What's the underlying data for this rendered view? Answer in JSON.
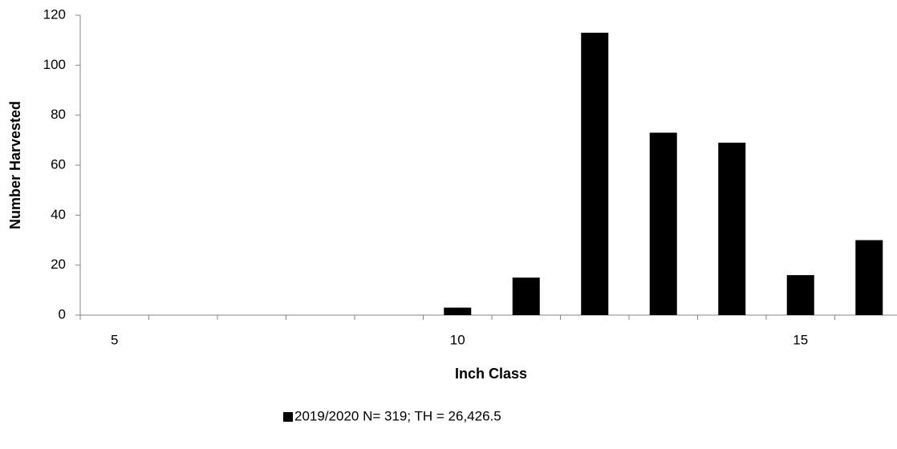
{
  "chart_data": {
    "type": "bar",
    "x_label": "Inch Class",
    "y_label": "Number Harvested",
    "categories": [
      "5",
      null,
      null,
      null,
      null,
      "10",
      null,
      null,
      null,
      null,
      "15",
      null
    ],
    "series": [
      {
        "name": "2019/2020 N= 319; TH = 26,426.5",
        "color": "#000000",
        "values": [
          0,
          0,
          0,
          0,
          0,
          3,
          15,
          113,
          73,
          69,
          16,
          30
        ]
      }
    ],
    "ylim": [
      0,
      120
    ],
    "yticks": [
      0,
      20,
      40,
      60,
      80,
      100,
      120
    ],
    "grid": false,
    "legend": "bottom"
  }
}
